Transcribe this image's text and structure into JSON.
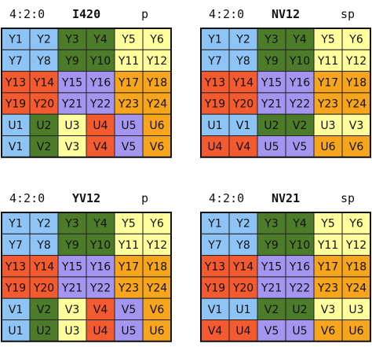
{
  "palette": [
    "#8ec4f5",
    "#4c7b2a",
    "#ffff9e",
    "#f45a30",
    "#a395f0",
    "#f7a51d"
  ],
  "panels": [
    {
      "sampling": "4:2:0",
      "name": "I420",
      "layout": "p",
      "rows": [
        [
          "Y1",
          "Y2",
          "Y3",
          "Y4",
          "Y5",
          "Y6"
        ],
        [
          "Y7",
          "Y8",
          "Y9",
          "Y10",
          "Y11",
          "Y12"
        ],
        [
          "Y13",
          "Y14",
          "Y15",
          "Y16",
          "Y17",
          "Y18"
        ],
        [
          "Y19",
          "Y20",
          "Y21",
          "Y22",
          "Y23",
          "Y24"
        ],
        [
          "U1",
          "U2",
          "U3",
          "U4",
          "U5",
          "U6"
        ],
        [
          "V1",
          "V2",
          "V3",
          "V4",
          "V5",
          "V6"
        ]
      ]
    },
    {
      "sampling": "4:2:0",
      "name": "NV12",
      "layout": "sp",
      "rows": [
        [
          "Y1",
          "Y2",
          "Y3",
          "Y4",
          "Y5",
          "Y6"
        ],
        [
          "Y7",
          "Y8",
          "Y9",
          "Y10",
          "Y11",
          "Y12"
        ],
        [
          "Y13",
          "Y14",
          "Y15",
          "Y16",
          "Y17",
          "Y18"
        ],
        [
          "Y19",
          "Y20",
          "Y21",
          "Y22",
          "Y23",
          "Y24"
        ],
        [
          "U1",
          "V1",
          "U2",
          "V2",
          "U3",
          "V3"
        ],
        [
          "U4",
          "V4",
          "U5",
          "V5",
          "U6",
          "V6"
        ]
      ]
    },
    {
      "sampling": "4:2:0",
      "name": "YV12",
      "layout": "p",
      "rows": [
        [
          "Y1",
          "Y2",
          "Y3",
          "Y4",
          "Y5",
          "Y6"
        ],
        [
          "Y7",
          "Y8",
          "Y9",
          "Y10",
          "Y11",
          "Y12"
        ],
        [
          "Y13",
          "Y14",
          "Y15",
          "Y16",
          "Y17",
          "Y18"
        ],
        [
          "Y19",
          "Y20",
          "Y21",
          "Y22",
          "Y23",
          "Y24"
        ],
        [
          "V1",
          "V2",
          "V3",
          "V4",
          "V5",
          "V6"
        ],
        [
          "U1",
          "U2",
          "U3",
          "U4",
          "U5",
          "U6"
        ]
      ]
    },
    {
      "sampling": "4:2:0",
      "name": "NV21",
      "layout": "sp",
      "rows": [
        [
          "Y1",
          "Y2",
          "Y3",
          "Y4",
          "Y5",
          "Y6"
        ],
        [
          "Y7",
          "Y8",
          "Y9",
          "Y10",
          "Y11",
          "Y12"
        ],
        [
          "Y13",
          "Y14",
          "Y15",
          "Y16",
          "Y17",
          "Y18"
        ],
        [
          "Y19",
          "Y20",
          "Y21",
          "Y22",
          "Y23",
          "Y24"
        ],
        [
          "V1",
          "U1",
          "V2",
          "U2",
          "V3",
          "U3"
        ],
        [
          "V4",
          "U4",
          "V5",
          "U5",
          "V6",
          "U6"
        ]
      ]
    }
  ]
}
